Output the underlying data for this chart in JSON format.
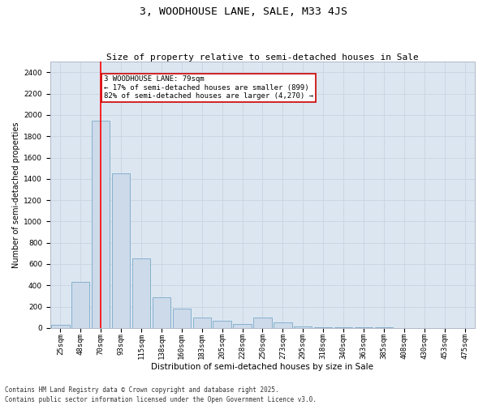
{
  "title": "3, WOODHOUSE LANE, SALE, M33 4JS",
  "subtitle": "Size of property relative to semi-detached houses in Sale",
  "xlabel": "Distribution of semi-detached houses by size in Sale",
  "ylabel": "Number of semi-detached properties",
  "categories": [
    "25sqm",
    "48sqm",
    "70sqm",
    "93sqm",
    "115sqm",
    "138sqm",
    "160sqm",
    "183sqm",
    "205sqm",
    "228sqm",
    "250sqm",
    "273sqm",
    "295sqm",
    "318sqm",
    "340sqm",
    "363sqm",
    "385sqm",
    "408sqm",
    "430sqm",
    "453sqm",
    "475sqm"
  ],
  "values": [
    30,
    430,
    1950,
    1450,
    650,
    290,
    185,
    100,
    70,
    35,
    100,
    55,
    15,
    10,
    5,
    5,
    3,
    2,
    1,
    1,
    0
  ],
  "bar_color": "#ccdaea",
  "bar_edge_color": "#7aaac8",
  "red_line_index": 2.0,
  "red_line_label": "3 WOODHOUSE LANE: 79sqm",
  "annotation_smaller": "← 17% of semi-detached houses are smaller (899)",
  "annotation_larger": "82% of semi-detached houses are larger (4,270) →",
  "annotation_box_facecolor": "#ffffff",
  "annotation_box_edgecolor": "#cc0000",
  "ylim": [
    0,
    2500
  ],
  "yticks": [
    0,
    200,
    400,
    600,
    800,
    1000,
    1200,
    1400,
    1600,
    1800,
    2000,
    2200,
    2400
  ],
  "grid_color": "#c8d4e4",
  "bg_color": "#dce6f0",
  "footer": "Contains HM Land Registry data © Crown copyright and database right 2025.\nContains public sector information licensed under the Open Government Licence v3.0.",
  "title_fontsize": 9.5,
  "subtitle_fontsize": 8,
  "xlabel_fontsize": 7.5,
  "ylabel_fontsize": 7,
  "tick_fontsize": 6.5,
  "annotation_fontsize": 6.5,
  "footer_fontsize": 5.5
}
